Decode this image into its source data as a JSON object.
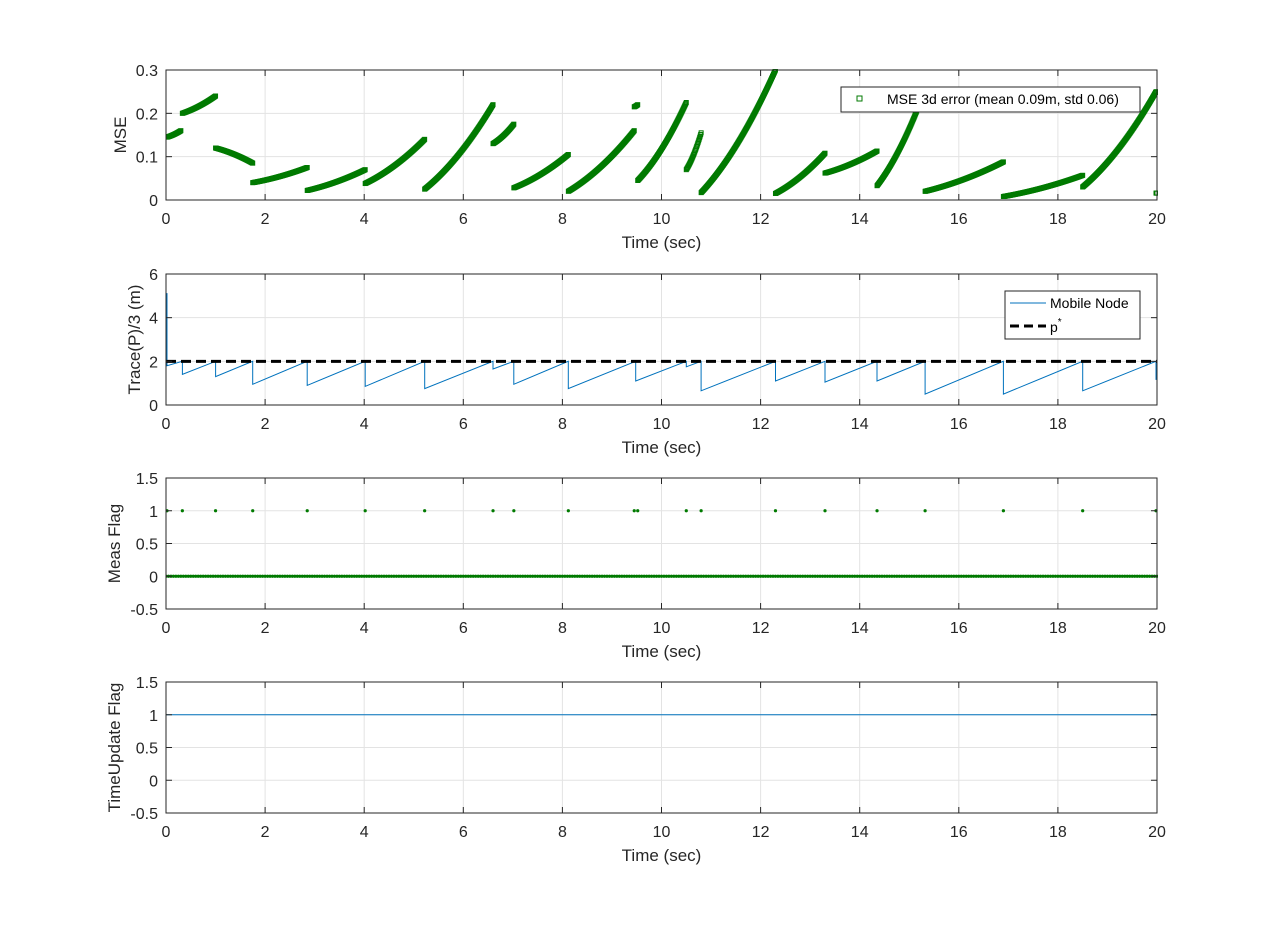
{
  "figure": {
    "background": "#ffffff"
  },
  "colors": {
    "green": "#007a00",
    "blue": "#0072bd",
    "black": "#000000",
    "grid": "#e3e3e3",
    "axes": "#262626"
  },
  "chart_data": [
    {
      "type": "scatter",
      "xlabel": "Time (sec)",
      "ylabel": "MSE",
      "xlim": [
        0,
        20
      ],
      "ylim": [
        0,
        0.3
      ],
      "xticks": [
        "0",
        "2",
        "4",
        "6",
        "8",
        "10",
        "12",
        "14",
        "16",
        "18",
        "20"
      ],
      "yticks": [
        "0",
        "0.1",
        "0.2",
        "0.3"
      ],
      "grid": true,
      "legend": {
        "placement": "top-right",
        "entries": [
          "MSE 3d error (mean 0.09m, std 0.06)"
        ]
      },
      "series": [
        {
          "name": "MSE 3d error (mean 0.09m, std 0.06)",
          "marker": "square",
          "segments": [
            {
              "t": [
                0.02,
                0.3
              ],
              "y": [
                0.145,
                0.16
              ]
            },
            {
              "t": [
                0.33,
                1.0
              ],
              "y": [
                0.2,
                0.24
              ]
            },
            {
              "t": [
                1.0,
                1.75
              ],
              "y": [
                0.12,
                0.085
              ]
            },
            {
              "t": [
                1.75,
                2.85
              ],
              "y": [
                0.04,
                0.075
              ]
            },
            {
              "t": [
                2.85,
                4.02
              ],
              "y": [
                0.022,
                0.07
              ]
            },
            {
              "t": [
                4.02,
                5.22
              ],
              "y": [
                0.038,
                0.14
              ]
            },
            {
              "t": [
                5.22,
                6.6
              ],
              "y": [
                0.025,
                0.22
              ]
            },
            {
              "t": [
                6.6,
                7.02
              ],
              "y": [
                0.13,
                0.175
              ]
            },
            {
              "t": [
                7.02,
                8.12
              ],
              "y": [
                0.028,
                0.105
              ]
            },
            {
              "t": [
                8.12,
                9.45
              ],
              "y": [
                0.02,
                0.16
              ]
            },
            {
              "t": [
                9.45,
                9.52
              ],
              "y": [
                0.215,
                0.22
              ]
            },
            {
              "t": [
                9.52,
                10.5
              ],
              "y": [
                0.045,
                0.225
              ]
            },
            {
              "t": [
                10.5,
                10.8
              ],
              "y": [
                0.07,
                0.155
              ]
            },
            {
              "t": [
                10.8,
                12.3
              ],
              "y": [
                0.017,
                0.3
              ]
            },
            {
              "t": [
                12.3,
                13.3
              ],
              "y": [
                0.015,
                0.108
              ]
            },
            {
              "t": [
                13.3,
                14.35
              ],
              "y": [
                0.062,
                0.113
              ]
            },
            {
              "t": [
                14.35,
                15.32
              ],
              "y": [
                0.033,
                0.255
              ]
            },
            {
              "t": [
                15.32,
                16.9
              ],
              "y": [
                0.02,
                0.088
              ]
            },
            {
              "t": [
                16.9,
                18.5
              ],
              "y": [
                0.008,
                0.057
              ]
            },
            {
              "t": [
                18.5,
                19.98
              ],
              "y": [
                0.03,
                0.25
              ]
            },
            {
              "t": [
                19.98,
                20.0
              ],
              "y": [
                0.016,
                0.016
              ]
            }
          ]
        }
      ]
    },
    {
      "type": "line",
      "xlabel": "Time (sec)",
      "ylabel": "Trace(P)/3 (m)",
      "xlim": [
        0,
        20
      ],
      "ylim": [
        0,
        6
      ],
      "xticks": [
        "0",
        "2",
        "4",
        "6",
        "8",
        "10",
        "12",
        "14",
        "16",
        "18",
        "20"
      ],
      "yticks": [
        "0",
        "2",
        "4",
        "6"
      ],
      "grid": true,
      "legend": {
        "placement": "top-right",
        "entries": [
          "Mobile Node",
          "p"
        ]
      },
      "threshold": {
        "label_base": "p",
        "label_sup": "*",
        "value": 2.0,
        "style": "dashed"
      },
      "series": [
        {
          "name": "Mobile Node",
          "sawtooth": [
            {
              "t": 0.02,
              "drop_to": 1.8
            },
            {
              "t": 0.33,
              "drop_to": 1.4
            },
            {
              "t": 1.0,
              "drop_to": 1.3
            },
            {
              "t": 1.75,
              "drop_to": 0.95
            },
            {
              "t": 2.85,
              "drop_to": 0.9
            },
            {
              "t": 4.02,
              "drop_to": 0.85
            },
            {
              "t": 5.22,
              "drop_to": 0.75
            },
            {
              "t": 6.6,
              "drop_to": 1.65
            },
            {
              "t": 7.02,
              "drop_to": 0.95
            },
            {
              "t": 8.12,
              "drop_to": 0.75
            },
            {
              "t": 9.48,
              "drop_to": 1.1
            },
            {
              "t": 10.5,
              "drop_to": 1.75
            },
            {
              "t": 10.8,
              "drop_to": 0.65
            },
            {
              "t": 12.3,
              "drop_to": 1.1
            },
            {
              "t": 13.3,
              "drop_to": 1.05
            },
            {
              "t": 14.35,
              "drop_to": 1.1
            },
            {
              "t": 15.32,
              "drop_to": 0.5
            },
            {
              "t": 16.9,
              "drop_to": 0.5
            },
            {
              "t": 18.5,
              "drop_to": 0.65
            },
            {
              "t": 19.98,
              "drop_to": 1.15
            }
          ],
          "initial_peak": 5.1,
          "peak_level": 2.0
        }
      ]
    },
    {
      "type": "scatter",
      "xlabel": "Time (sec)",
      "ylabel": "Meas Flag",
      "xlim": [
        0,
        20
      ],
      "ylim": [
        -0.5,
        1.5
      ],
      "xticks": [
        "0",
        "2",
        "4",
        "6",
        "8",
        "10",
        "12",
        "14",
        "16",
        "18",
        "20"
      ],
      "yticks": [
        "-0.5",
        "0",
        "0.5",
        "1",
        "1.5"
      ],
      "grid": true,
      "series": [
        {
          "ones_at": [
            0.02,
            0.33,
            1.0,
            1.75,
            2.85,
            4.02,
            5.22,
            6.6,
            7.02,
            8.12,
            9.45,
            9.52,
            10.5,
            10.8,
            12.3,
            13.3,
            14.35,
            15.32,
            16.9,
            18.5,
            19.98
          ],
          "zeros": {
            "from": 0.0,
            "to": 20.0,
            "step": 0.05
          }
        }
      ]
    },
    {
      "type": "line",
      "xlabel": "Time (sec)",
      "ylabel": "TimeUpdate Flag",
      "xlim": [
        0,
        20
      ],
      "ylim": [
        -0.5,
        1.5
      ],
      "xticks": [
        "0",
        "2",
        "4",
        "6",
        "8",
        "10",
        "12",
        "14",
        "16",
        "18",
        "20"
      ],
      "yticks": [
        "-0.5",
        "0",
        "0.5",
        "1",
        "1.5"
      ],
      "grid": true,
      "series": [
        {
          "x": [
            0,
            20
          ],
          "y": [
            1,
            1
          ]
        }
      ]
    }
  ]
}
